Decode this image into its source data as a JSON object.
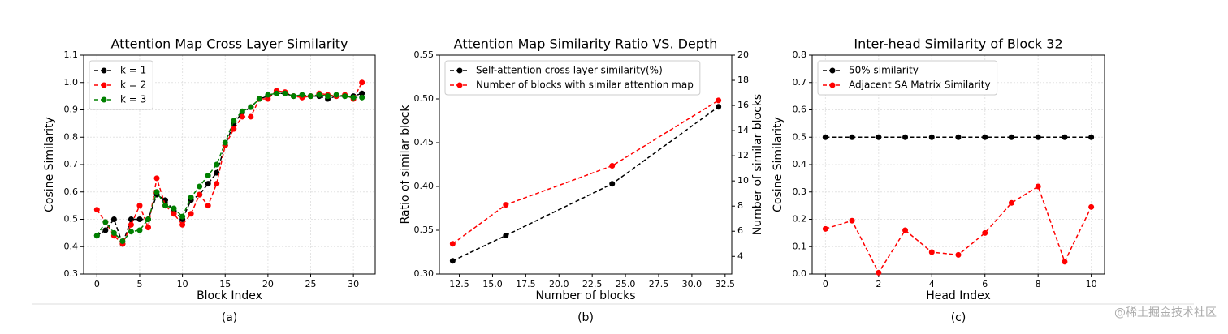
{
  "chart_data": [
    {
      "type": "line",
      "title": "Attention Map Cross Layer Similarity",
      "xlabel": "Block Index",
      "ylabel": "Cosine Similarity",
      "caption": "(a)",
      "x": [
        0,
        1,
        2,
        3,
        4,
        5,
        6,
        7,
        8,
        9,
        10,
        11,
        12,
        13,
        14,
        15,
        16,
        17,
        18,
        19,
        20,
        21,
        22,
        23,
        24,
        25,
        26,
        27,
        28,
        29,
        30,
        31
      ],
      "series": [
        {
          "name": "k = 1",
          "color": "#000000",
          "values": [
            0.44,
            0.46,
            0.5,
            0.41,
            0.5,
            0.5,
            0.5,
            0.59,
            0.57,
            0.53,
            0.5,
            0.57,
            0.59,
            0.63,
            0.67,
            0.77,
            0.85,
            0.89,
            0.91,
            0.94,
            0.95,
            0.96,
            0.96,
            0.95,
            0.95,
            0.95,
            0.95,
            0.94,
            0.95,
            0.95,
            0.95,
            0.96
          ]
        },
        {
          "name": "k = 2",
          "color": "#ff0000",
          "values": [
            0.535,
            0.49,
            0.44,
            0.41,
            0.48,
            0.55,
            0.47,
            0.65,
            0.55,
            0.52,
            0.48,
            0.52,
            0.59,
            0.55,
            0.63,
            0.77,
            0.83,
            0.875,
            0.875,
            0.94,
            0.94,
            0.97,
            0.965,
            0.95,
            0.945,
            0.95,
            0.96,
            0.955,
            0.95,
            0.955,
            0.94,
            1.0
          ]
        },
        {
          "name": "k = 3",
          "color": "#008000",
          "values": [
            0.44,
            0.49,
            0.45,
            0.42,
            0.455,
            0.46,
            0.5,
            0.6,
            0.55,
            0.54,
            0.51,
            0.58,
            0.62,
            0.66,
            0.7,
            0.78,
            0.86,
            0.895,
            0.91,
            0.94,
            0.955,
            0.96,
            0.96,
            0.95,
            0.955,
            0.95,
            0.955,
            0.95,
            0.955,
            0.95,
            0.945,
            0.945
          ]
        }
      ],
      "xlim": [
        -1.55,
        32.55
      ],
      "xticks": [
        0,
        5,
        10,
        15,
        20,
        25,
        30
      ],
      "ylim": [
        0.3,
        1.1
      ],
      "yticks": [
        0.3,
        0.4,
        0.5,
        0.6,
        0.7,
        0.8,
        0.9,
        {
          "value": 1.0,
          "label": "1.0"
        },
        1.1
      ],
      "grid": true,
      "legend": "upper left"
    },
    {
      "type": "line",
      "title": "Attention Map Similarity Ratio VS. Depth",
      "xlabel": "Number of blocks",
      "ylabel": "Ratio of similar block",
      "y2label": "Number of similar blocks",
      "caption": "(b)",
      "x": [
        12,
        16,
        24,
        32
      ],
      "series": [
        {
          "name": "Self-attention cross layer similarity(%)",
          "color": "#000000",
          "values": [
            0.315,
            0.344,
            0.403,
            0.491
          ]
        },
        {
          "name": "Number of blocks with similar attention map",
          "color": "#ff0000",
          "axis": "y2",
          "values": [
            5.0,
            8.1,
            11.2,
            16.4
          ]
        }
      ],
      "xlim": [
        11.0,
        33.0
      ],
      "xticks": [
        12.5,
        {
          "value": 15,
          "label": "15.0"
        },
        17.5,
        {
          "value": 20,
          "label": "20.0"
        },
        22.5,
        {
          "value": 25,
          "label": "25.0"
        },
        27.5,
        {
          "value": 30,
          "label": "30.0"
        },
        32.5
      ],
      "ylim": [
        0.3,
        0.55
      ],
      "yticks": [
        {
          "value": 0.3,
          "label": "0.30"
        },
        0.35,
        {
          "value": 0.4,
          "label": "0.40"
        },
        0.45,
        {
          "value": 0.5,
          "label": "0.50"
        },
        0.55
      ],
      "y2lim": [
        2.6,
        20
      ],
      "y2ticks": [
        4,
        6,
        8,
        10,
        12,
        14,
        16,
        18,
        20
      ],
      "grid": false,
      "legend": "upper left"
    },
    {
      "type": "line",
      "title": "Inter-head Similarity of Block 32",
      "xlabel": "Head Index",
      "ylabel": "Cosine Similarity",
      "caption": "(c)",
      "x": [
        0,
        1,
        2,
        3,
        4,
        5,
        6,
        7,
        8,
        9,
        10
      ],
      "series": [
        {
          "name": "50% similarity",
          "color": "#000000",
          "values": [
            0.5,
            0.5,
            0.5,
            0.5,
            0.5,
            0.5,
            0.5,
            0.5,
            0.5,
            0.5,
            0.5
          ]
        },
        {
          "name": "Adjacent SA Matrix Similarity",
          "color": "#ff0000",
          "values": [
            0.165,
            0.195,
            0.005,
            0.16,
            0.08,
            0.07,
            0.15,
            0.26,
            0.32,
            0.045,
            0.245
          ]
        }
      ],
      "xlim": [
        -0.5,
        10.5
      ],
      "xticks": [
        0,
        2,
        4,
        6,
        8,
        10
      ],
      "ylim": [
        0,
        0.8
      ],
      "yticks": [
        {
          "value": 0,
          "label": "0.0"
        },
        0.1,
        0.2,
        0.3,
        0.4,
        0.5,
        0.6,
        0.7,
        0.8
      ],
      "grid": true,
      "legend": "upper left"
    }
  ],
  "watermark": "@稀土掘金技术社区"
}
